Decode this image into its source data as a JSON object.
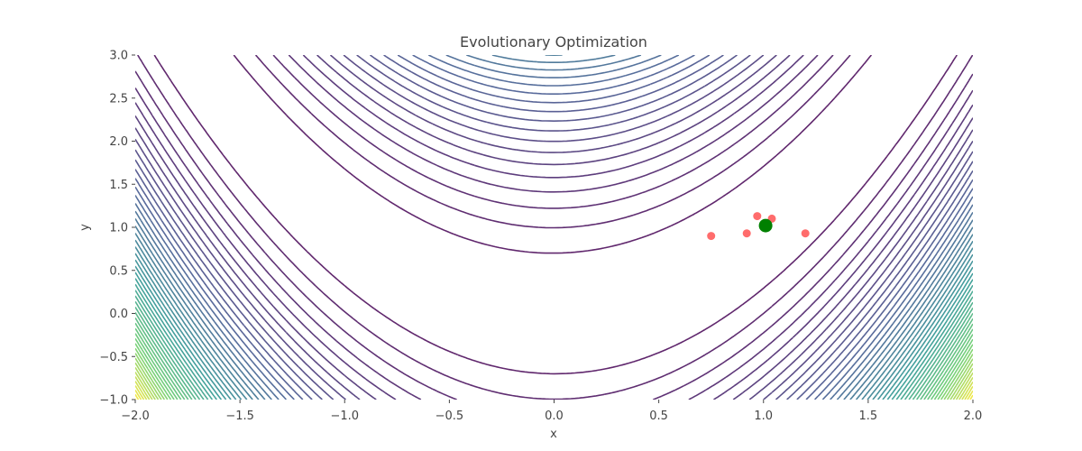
{
  "chart_data": {
    "type": "contour",
    "title": "Evolutionary Optimization",
    "xlabel": "x",
    "ylabel": "y",
    "xlim": [
      -2.0,
      2.0
    ],
    "ylim": [
      -1.0,
      3.0
    ],
    "x_ticks": [
      -2.0,
      -1.5,
      -1.0,
      -0.5,
      0.0,
      0.5,
      1.0,
      1.5,
      2.0
    ],
    "y_ticks": [
      -1.0,
      -0.5,
      0.0,
      0.5,
      1.0,
      1.5,
      2.0,
      2.5,
      3.0
    ],
    "x_tick_labels": [
      "−2.0",
      "−1.5",
      "−1.0",
      "−0.5",
      "0.0",
      "0.5",
      "1.0",
      "1.5",
      "2.0"
    ],
    "y_tick_labels": [
      "−1.0",
      "−0.5",
      "0.0",
      "0.5",
      "1.0",
      "1.5",
      "2.0",
      "2.5",
      "3.0"
    ],
    "grid": false,
    "contour": {
      "function": "rosenbrock",
      "levels": {
        "start": 50,
        "stop": 2500,
        "step": 50
      },
      "colormap": "viridis"
    },
    "series": [
      {
        "marker": "population",
        "color": "#ff3b3b",
        "points": [
          {
            "x": 0.75,
            "y": 0.9
          },
          {
            "x": 0.92,
            "y": 0.93
          },
          {
            "x": 0.97,
            "y": 1.13
          },
          {
            "x": 1.04,
            "y": 1.1
          },
          {
            "x": 1.2,
            "y": 0.93
          }
        ]
      },
      {
        "marker": "best",
        "color": "#008000",
        "points": [
          {
            "x": 1.01,
            "y": 1.02
          }
        ]
      }
    ]
  }
}
